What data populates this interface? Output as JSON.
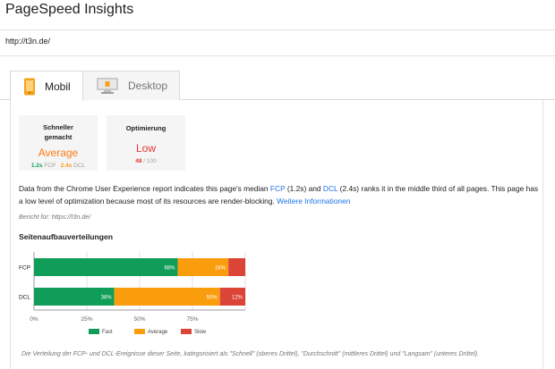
{
  "app": {
    "title": "PageSpeed Insights"
  },
  "url_bar": {
    "value": "http://t3n.de/"
  },
  "tabs": [
    {
      "label": "Mobil",
      "selected": true,
      "icon": "phone-icon"
    },
    {
      "label": "Desktop",
      "selected": false,
      "icon": "monitor-icon"
    }
  ],
  "cards": {
    "speed": {
      "title": "Schneller gemacht",
      "value": "Average",
      "fcp_value": "1.2s",
      "fcp_label": "FCP",
      "dcl_value": "2.4s",
      "dcl_label": "DCL"
    },
    "optimization": {
      "title": "Optimierung",
      "value": "Low",
      "score": "48",
      "score_max": "/ 100"
    }
  },
  "summary": {
    "part1": "Data from the Chrome User Experience report indicates this page's median ",
    "fcp_link": "FCP",
    "part2": " (1.2s) and ",
    "dcl_link": "DCL",
    "part3": " (2.4s) ranks it in the middle third of all pages. This page has a low level of optimization because most of its resources are render-blocking. ",
    "more_link": "Weitere Informationen"
  },
  "report_source": "Bericht für: https://t3n.de/",
  "chart_heading": "Seitenaufbauverteilungen",
  "chart_data": {
    "type": "bar",
    "orientation": "horizontal",
    "stacked": true,
    "categories": [
      "FCP",
      "DCL"
    ],
    "series": [
      {
        "name": "Fast",
        "values": [
          68,
          38
        ],
        "labels": [
          "68%",
          "38%"
        ],
        "color": "#0f9d58"
      },
      {
        "name": "Average",
        "values": [
          24,
          50
        ],
        "labels": [
          "24%",
          "50%"
        ],
        "color": "#fa9d0d"
      },
      {
        "name": "Slow",
        "values": [
          8,
          12
        ],
        "labels": [
          "",
          "12%"
        ],
        "color": "#db4437"
      }
    ],
    "xticks": [
      "0%",
      "25%",
      "50%",
      "75%"
    ],
    "xlim": [
      0,
      100
    ],
    "legend_position": "bottom"
  },
  "footnote": "Die Verteilung der FCP- und DCL-Ereignisse dieser Seite, kategorisiert als \"Schnell\" (oberes Drittel), \"Durchschnitt\" (mittleres Drittel) und \"Langsam\" (unteres Drittel)."
}
